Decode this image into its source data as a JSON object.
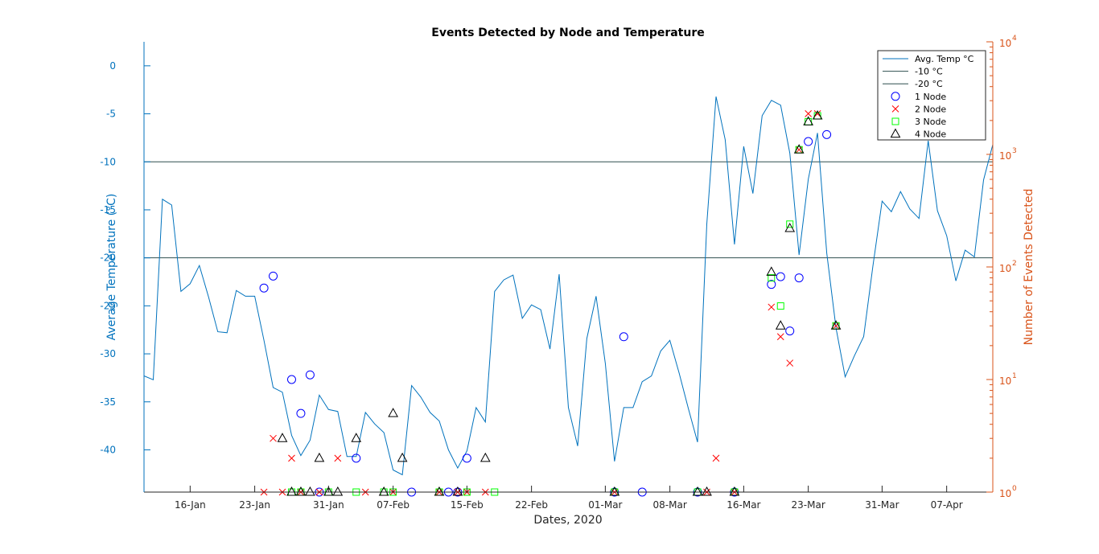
{
  "chart_data": {
    "type": "line",
    "title": "Events Detected by Node and Temperature",
    "xlabel": "Dates, 2020",
    "ylabel_left": "Average Temperature (°C)",
    "ylabel_right": "Number of Events Detected",
    "x_start": "2020-01-11",
    "x_end": "2020-04-12",
    "x_ticks": [
      {
        "date": "2020-01-16",
        "label": "16-Jan"
      },
      {
        "date": "2020-01-23",
        "label": "23-Jan"
      },
      {
        "date": "2020-01-31",
        "label": "31-Jan"
      },
      {
        "date": "2020-02-07",
        "label": "07-Feb"
      },
      {
        "date": "2020-02-15",
        "label": "15-Feb"
      },
      {
        "date": "2020-02-22",
        "label": "22-Feb"
      },
      {
        "date": "2020-03-01",
        "label": "01-Mar"
      },
      {
        "date": "2020-03-08",
        "label": "08-Mar"
      },
      {
        "date": "2020-03-16",
        "label": "16-Mar"
      },
      {
        "date": "2020-03-23",
        "label": "23-Mar"
      },
      {
        "date": "2020-03-31",
        "label": "31-Mar"
      },
      {
        "date": "2020-04-07",
        "label": "07-Apr"
      }
    ],
    "y_left": {
      "ylim": [
        -44.4,
        2.5
      ],
      "ticks": [
        "0",
        "-5",
        "-10",
        "-15",
        "-20",
        "-25",
        "-30",
        "-35",
        "-40"
      ],
      "tick_values": [
        0,
        -5,
        -10,
        -15,
        -20,
        -25,
        -30,
        -35,
        -40
      ]
    },
    "y_right": {
      "scale": "log",
      "ylim": [
        1,
        10000
      ],
      "ticks": [
        {
          "value": 1,
          "base": "10",
          "exp": "0"
        },
        {
          "value": 10,
          "base": "10",
          "exp": "1"
        },
        {
          "value": 100,
          "base": "10",
          "exp": "2"
        },
        {
          "value": 1000,
          "base": "10",
          "exp": "3"
        },
        {
          "value": 10000,
          "base": "10",
          "exp": "4"
        }
      ]
    },
    "hlines": [
      {
        "name": "-10 °C",
        "value": -10
      },
      {
        "name": "-20 °C",
        "value": -20
      }
    ],
    "colors": {
      "temp": "#0072BD",
      "right_axis": "#D95319",
      "hline": "#2f4f4f",
      "node1": "#0000FF",
      "node2": "#FF0000",
      "node3": "#00FF00",
      "node4": "#000000"
    },
    "legend": {
      "placement": "top-right",
      "entries": [
        "Avg. Temp °C",
        "-10 °C",
        "-20 °C",
        "1 Node",
        "2 Node",
        "3 Node",
        "4 Node"
      ]
    },
    "temperature": {
      "name": "Avg. Temp °C",
      "dates": [
        "2020-01-11",
        "2020-01-12",
        "2020-01-13",
        "2020-01-14",
        "2020-01-15",
        "2020-01-16",
        "2020-01-17",
        "2020-01-18",
        "2020-01-19",
        "2020-01-20",
        "2020-01-21",
        "2020-01-22",
        "2020-01-23",
        "2020-01-24",
        "2020-01-25",
        "2020-01-26",
        "2020-01-27",
        "2020-01-28",
        "2020-01-29",
        "2020-01-30",
        "2020-01-31",
        "2020-02-01",
        "2020-02-02",
        "2020-02-03",
        "2020-02-04",
        "2020-02-05",
        "2020-02-06",
        "2020-02-07",
        "2020-02-08",
        "2020-02-09",
        "2020-02-10",
        "2020-02-11",
        "2020-02-12",
        "2020-02-13",
        "2020-02-14",
        "2020-02-15",
        "2020-02-16",
        "2020-02-17",
        "2020-02-18",
        "2020-02-19",
        "2020-02-20",
        "2020-02-21",
        "2020-02-22",
        "2020-02-23",
        "2020-02-24",
        "2020-02-25",
        "2020-02-26",
        "2020-02-27",
        "2020-02-28",
        "2020-02-29",
        "2020-03-01",
        "2020-03-02",
        "2020-03-03",
        "2020-03-04",
        "2020-03-05",
        "2020-03-06",
        "2020-03-07",
        "2020-03-08",
        "2020-03-09",
        "2020-03-10",
        "2020-03-11",
        "2020-03-12",
        "2020-03-13",
        "2020-03-14",
        "2020-03-15",
        "2020-03-16",
        "2020-03-17",
        "2020-03-18",
        "2020-03-19",
        "2020-03-20",
        "2020-03-21",
        "2020-03-22",
        "2020-03-23",
        "2020-03-24",
        "2020-03-25",
        "2020-03-26",
        "2020-03-27",
        "2020-03-28",
        "2020-03-29",
        "2020-03-30",
        "2020-03-31",
        "2020-04-01",
        "2020-04-02",
        "2020-04-03",
        "2020-04-04",
        "2020-04-05",
        "2020-04-06",
        "2020-04-07",
        "2020-04-08",
        "2020-04-09",
        "2020-04-10",
        "2020-04-11",
        "2020-04-12"
      ],
      "values": [
        -32.3,
        -32.7,
        -13.9,
        -14.5,
        -23.5,
        -22.7,
        -20.8,
        -24.1,
        -27.7,
        -27.8,
        -23.4,
        -24.0,
        -24.0,
        -28.6,
        -33.5,
        -34.0,
        -38.5,
        -40.6,
        -39.0,
        -34.3,
        -35.8,
        -36.0,
        -40.7,
        -40.7,
        -36.1,
        -37.3,
        -38.2,
        -42.1,
        -42.6,
        -33.3,
        -34.5,
        -36.1,
        -37.0,
        -40.0,
        -41.9,
        -40.1,
        -35.6,
        -37.1,
        -23.5,
        -22.3,
        -21.8,
        -26.3,
        -24.9,
        -25.4,
        -29.5,
        -21.7,
        -35.6,
        -39.6,
        -28.4,
        -24.0,
        -31.0,
        -41.2,
        -35.6,
        -35.6,
        -32.9,
        -32.3,
        -29.7,
        -28.6,
        -32.0,
        -35.7,
        -39.2,
        -16.5,
        -3.2,
        -7.7,
        -18.6,
        -8.4,
        -13.3,
        -5.2,
        -3.6,
        -4.1,
        -9.1,
        -19.7,
        -11.8,
        -7.0,
        -19.5,
        -27.3,
        -32.4,
        -30.2,
        -28.2,
        -20.9,
        -14.1,
        -15.2,
        -13.1,
        -14.9,
        -15.9,
        -7.8,
        -15.1,
        -17.7,
        -22.4,
        -19.2,
        -19.9,
        -11.9,
        -8.2
      ]
    },
    "series": [
      {
        "name": "1 Node",
        "marker": "circle",
        "points": [
          [
            "2020-01-24",
            65
          ],
          [
            "2020-01-25",
            83
          ],
          [
            "2020-01-27",
            10
          ],
          [
            "2020-01-28",
            5
          ],
          [
            "2020-01-29",
            11
          ],
          [
            "2020-01-30",
            1
          ],
          [
            "2020-02-03",
            2
          ],
          [
            "2020-02-09",
            1
          ],
          [
            "2020-02-13",
            1
          ],
          [
            "2020-02-14",
            1
          ],
          [
            "2020-02-15",
            2
          ],
          [
            "2020-03-02",
            1
          ],
          [
            "2020-03-03",
            24
          ],
          [
            "2020-03-05",
            1
          ],
          [
            "2020-03-11",
            1
          ],
          [
            "2020-03-15",
            1
          ],
          [
            "2020-03-19",
            70
          ],
          [
            "2020-03-20",
            82
          ],
          [
            "2020-03-21",
            27
          ],
          [
            "2020-03-22",
            80
          ],
          [
            "2020-03-23",
            1300
          ],
          [
            "2020-03-25",
            1500
          ]
        ]
      },
      {
        "name": "2 Node",
        "marker": "x",
        "points": [
          [
            "2020-01-24",
            1
          ],
          [
            "2020-01-25",
            3
          ],
          [
            "2020-01-26",
            1
          ],
          [
            "2020-01-27",
            2
          ],
          [
            "2020-01-28",
            1
          ],
          [
            "2020-01-30",
            1
          ],
          [
            "2020-02-01",
            2
          ],
          [
            "2020-02-04",
            1
          ],
          [
            "2020-02-07",
            1
          ],
          [
            "2020-02-12",
            1
          ],
          [
            "2020-02-14",
            1
          ],
          [
            "2020-02-15",
            1
          ],
          [
            "2020-02-17",
            1
          ],
          [
            "2020-03-02",
            1
          ],
          [
            "2020-03-12",
            1
          ],
          [
            "2020-03-13",
            2
          ],
          [
            "2020-03-15",
            1
          ],
          [
            "2020-03-19",
            44
          ],
          [
            "2020-03-20",
            24
          ],
          [
            "2020-03-21",
            14
          ],
          [
            "2020-03-22",
            1100
          ],
          [
            "2020-03-23",
            2300
          ],
          [
            "2020-03-24",
            2300
          ],
          [
            "2020-03-26",
            30
          ]
        ]
      },
      {
        "name": "3 Node",
        "marker": "square",
        "points": [
          [
            "2020-01-27",
            1
          ],
          [
            "2020-01-28",
            1
          ],
          [
            "2020-01-31",
            1
          ],
          [
            "2020-02-03",
            1
          ],
          [
            "2020-02-06",
            1
          ],
          [
            "2020-02-07",
            1
          ],
          [
            "2020-02-12",
            1
          ],
          [
            "2020-02-15",
            1
          ],
          [
            "2020-02-18",
            1
          ],
          [
            "2020-03-02",
            1
          ],
          [
            "2020-03-11",
            1
          ],
          [
            "2020-03-15",
            1
          ],
          [
            "2020-03-19",
            80
          ],
          [
            "2020-03-20",
            45
          ],
          [
            "2020-03-21",
            240
          ],
          [
            "2020-03-22",
            1100
          ],
          [
            "2020-03-23",
            1950
          ],
          [
            "2020-03-24",
            2200
          ],
          [
            "2020-03-26",
            30
          ]
        ]
      },
      {
        "name": "4 Node",
        "marker": "triangle",
        "points": [
          [
            "2020-01-26",
            3
          ],
          [
            "2020-01-27",
            1
          ],
          [
            "2020-01-28",
            1
          ],
          [
            "2020-01-29",
            1
          ],
          [
            "2020-01-30",
            2
          ],
          [
            "2020-01-31",
            1
          ],
          [
            "2020-02-01",
            1
          ],
          [
            "2020-02-03",
            3
          ],
          [
            "2020-02-06",
            1
          ],
          [
            "2020-02-07",
            5
          ],
          [
            "2020-02-08",
            2
          ],
          [
            "2020-02-12",
            1
          ],
          [
            "2020-02-14",
            1
          ],
          [
            "2020-02-17",
            2
          ],
          [
            "2020-03-02",
            1
          ],
          [
            "2020-03-11",
            1
          ],
          [
            "2020-03-12",
            1
          ],
          [
            "2020-03-15",
            1
          ],
          [
            "2020-03-19",
            90
          ],
          [
            "2020-03-20",
            30
          ],
          [
            "2020-03-21",
            220
          ],
          [
            "2020-03-22",
            1100
          ],
          [
            "2020-03-23",
            1950
          ],
          [
            "2020-03-24",
            2200
          ],
          [
            "2020-03-26",
            30
          ]
        ]
      }
    ]
  }
}
